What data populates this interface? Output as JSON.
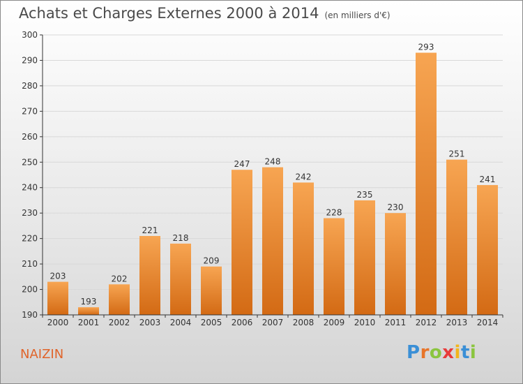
{
  "title": "Achats et Charges Externes 2000 à 2014",
  "subtitle": "(en milliers d'€)",
  "location": "NAIZIN",
  "logo": {
    "letters": [
      "P",
      "r",
      "o",
      "x",
      "i",
      "t",
      "i"
    ],
    "colors": [
      "#3a8fd6",
      "#e8752a",
      "#8bc53f",
      "#e83a3a",
      "#f2b51c",
      "#3a8fd6",
      "#8bc53f"
    ]
  },
  "colors": {
    "bar_top": "#f7a552",
    "bar_bottom": "#d36a14",
    "grid": "#d8d8d8",
    "axis": "#333333"
  },
  "chart_data": {
    "type": "bar",
    "title": "Achats et Charges Externes 2000 à 2014",
    "subtitle": "(en milliers d'€)",
    "categories": [
      "2000",
      "2001",
      "2002",
      "2003",
      "2004",
      "2005",
      "2006",
      "2007",
      "2008",
      "2009",
      "2010",
      "2011",
      "2012",
      "2013",
      "2014"
    ],
    "values": [
      203,
      193,
      202,
      221,
      218,
      209,
      247,
      248,
      242,
      228,
      235,
      230,
      293,
      251,
      241
    ],
    "ylim": [
      190,
      300
    ],
    "yticks": [
      190,
      200,
      210,
      220,
      230,
      240,
      250,
      260,
      270,
      280,
      290,
      300
    ],
    "grid": true,
    "xlabel": "",
    "ylabel": ""
  }
}
